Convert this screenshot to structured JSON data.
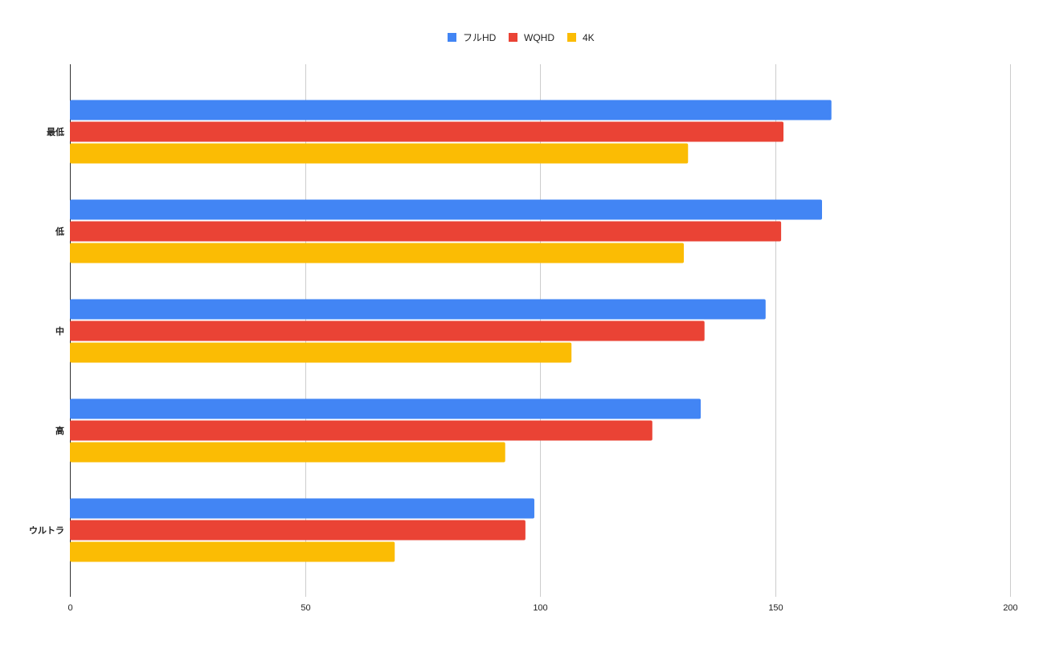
{
  "chart_data": {
    "type": "bar",
    "orientation": "horizontal",
    "title": "",
    "xlabel": "",
    "ylabel": "",
    "categories": [
      "最低",
      "低",
      "中",
      "高",
      "ウルトラ"
    ],
    "series": [
      {
        "name": "フルHD",
        "color": "#4285f4",
        "values": [
          162,
          160,
          148,
          134.2,
          98.8
        ]
      },
      {
        "name": "WQHD",
        "color": "#ea4335",
        "values": [
          151.8,
          151.3,
          135,
          123.9,
          96.9
        ]
      },
      {
        "name": "4K",
        "color": "#fbbc04",
        "values": [
          131.5,
          130.6,
          106.7,
          92.6,
          69.1
        ]
      }
    ],
    "xlim": [
      0,
      200
    ],
    "xticks": [
      0,
      50,
      100,
      150,
      200
    ],
    "grid": true,
    "legend_position": "top-center"
  }
}
